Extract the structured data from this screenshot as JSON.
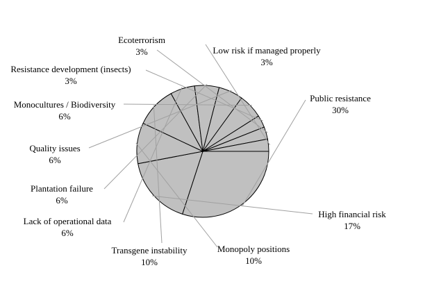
{
  "chart_data": {
    "type": "pie",
    "title": "",
    "start_angle_deg": 0,
    "direction": "clockwise",
    "slice_fill": "#c0c0c0",
    "slice_stroke": "#000000",
    "leader_color": "#a0a0a0",
    "slices": [
      {
        "label": "Public resistance",
        "value": 30,
        "value_label": "30%"
      },
      {
        "label": "High financial risk",
        "value": 17,
        "value_label": "17%"
      },
      {
        "label": "Monopoly positions",
        "value": 10,
        "value_label": "10%"
      },
      {
        "label": "Transgene instability",
        "value": 10,
        "value_label": "10%"
      },
      {
        "label": "Lack of operational data",
        "value": 6,
        "value_label": "6%"
      },
      {
        "label": "Plantation failure",
        "value": 6,
        "value_label": "6%"
      },
      {
        "label": "Quality issues",
        "value": 6,
        "value_label": "6%"
      },
      {
        "label": "Monocultures / Biodiversity",
        "value": 6,
        "value_label": "6%"
      },
      {
        "label": "Resistance development (insects)",
        "value": 3,
        "value_label": "3%"
      },
      {
        "label": "Ecoterrorism",
        "value": 3,
        "value_label": "3%"
      },
      {
        "label": "Low risk if managed properly",
        "value": 3,
        "value_label": "3%"
      }
    ]
  }
}
